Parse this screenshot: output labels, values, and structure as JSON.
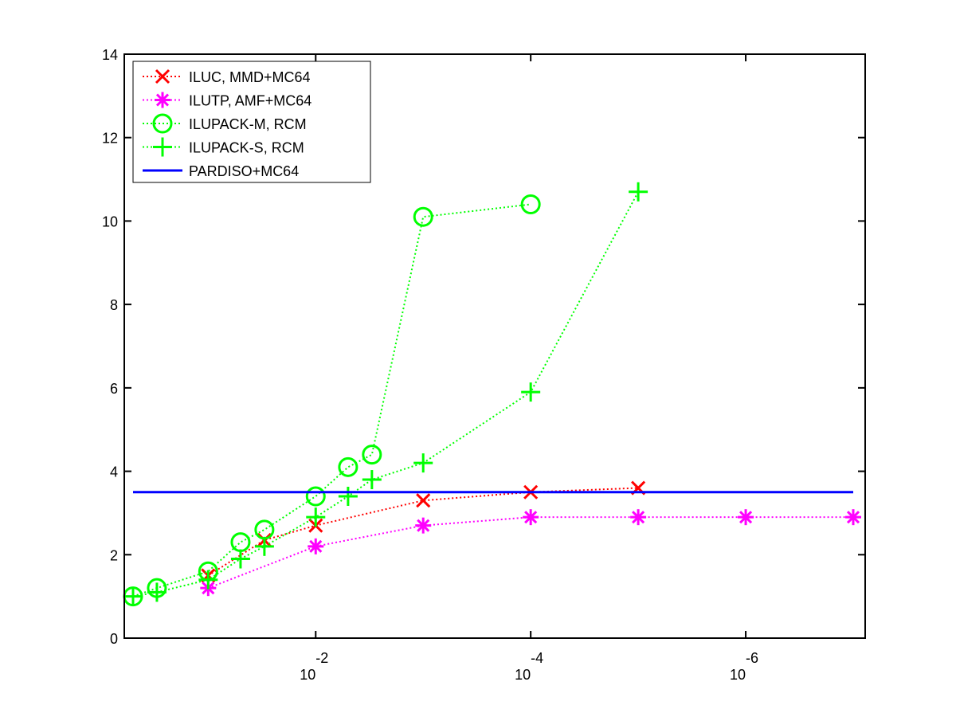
{
  "chart_data": {
    "type": "line",
    "title": "",
    "xlabel": "",
    "ylabel": "",
    "x_scale": "log",
    "x_direction": "reversed",
    "xlim": [
      0.5,
      1e-07
    ],
    "ylim": [
      0,
      14
    ],
    "grid": false,
    "legend_position": "top-left",
    "x_ticks": [
      {
        "value": 0.01,
        "base": "10",
        "exponent": "-2"
      },
      {
        "value": 0.0001,
        "base": "10",
        "exponent": "-4"
      },
      {
        "value": 1e-06,
        "base": "10",
        "exponent": "-6"
      }
    ],
    "y_ticks": [
      0,
      2,
      4,
      6,
      8,
      10,
      12,
      14
    ],
    "series": [
      {
        "name": "ILUC, MMD+MC64",
        "color": "#ff0000",
        "line_style": "dotted",
        "marker": "x",
        "x": [
          0.1,
          0.03,
          0.01,
          0.001,
          0.0001,
          1e-05
        ],
        "y": [
          1.5,
          2.35,
          2.7,
          3.3,
          3.5,
          3.6
        ]
      },
      {
        "name": "ILUTP, AMF+MC64",
        "color": "#ff00ff",
        "line_style": "dotted",
        "marker": "asterisk",
        "x": [
          0.1,
          0.01,
          0.001,
          0.0001,
          1e-05,
          1e-06,
          1e-07
        ],
        "y": [
          1.2,
          2.2,
          2.7,
          2.9,
          2.9,
          2.9,
          2.9
        ]
      },
      {
        "name": "ILUPACK-M, RCM",
        "color": "#00ff00",
        "line_style": "dotted",
        "marker": "circle",
        "x": [
          0.5,
          0.3,
          0.1,
          0.05,
          0.03,
          0.01,
          0.005,
          0.003,
          0.001,
          0.0001
        ],
        "y": [
          1.0,
          1.2,
          1.6,
          2.3,
          2.6,
          3.4,
          4.1,
          4.4,
          10.1,
          10.4
        ]
      },
      {
        "name": "ILUPACK-S, RCM",
        "color": "#00ff00",
        "line_style": "dotted",
        "marker": "plus",
        "x": [
          0.5,
          0.3,
          0.1,
          0.05,
          0.03,
          0.01,
          0.005,
          0.003,
          0.001,
          0.0001,
          1e-05
        ],
        "y": [
          1.0,
          1.1,
          1.4,
          1.9,
          2.2,
          2.9,
          3.4,
          3.8,
          4.2,
          5.9,
          10.7
        ]
      },
      {
        "name": "PARDISO+MC64",
        "color": "#0000ff",
        "line_style": "solid",
        "marker": "none",
        "x": [
          0.5,
          1e-07
        ],
        "y": [
          3.5,
          3.5
        ]
      }
    ]
  }
}
